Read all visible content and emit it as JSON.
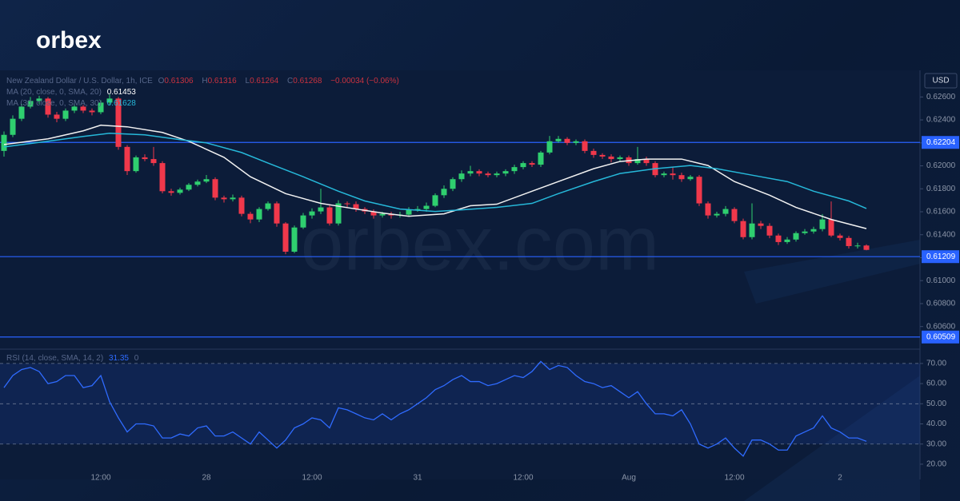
{
  "brand": "orbex",
  "watermark": "orbex.com",
  "chart_data": [
    {
      "type": "candlestick",
      "title": "New Zealand Dollar / U.S. Dollar, 1h, ICE",
      "ohlc_labels": [
        "O",
        "H",
        "L",
        "C"
      ],
      "change": "−0.00034 (−0.06%)",
      "currency": "USD",
      "up_color": "#2fcf6f",
      "down_color": "#f0384b",
      "level_color": "#2962ff",
      "categories": [
        null,
        null,
        null,
        null,
        null,
        null,
        null,
        null,
        null,
        null,
        null,
        "12:00",
        null,
        null,
        null,
        null,
        null,
        null,
        null,
        null,
        null,
        null,
        null,
        "28",
        null,
        null,
        null,
        null,
        null,
        null,
        null,
        null,
        null,
        null,
        null,
        "12:00",
        null,
        null,
        null,
        null,
        null,
        null,
        null,
        null,
        null,
        null,
        null,
        "31",
        null,
        null,
        null,
        null,
        null,
        null,
        null,
        null,
        null,
        null,
        null,
        "12:00",
        null,
        null,
        null,
        null,
        null,
        null,
        null,
        null,
        null,
        null,
        null,
        "Aug",
        null,
        null,
        null,
        null,
        null,
        null,
        null,
        null,
        null,
        null,
        null,
        "12:00",
        null,
        null,
        null,
        null,
        null,
        null,
        null,
        null,
        null,
        null,
        null,
        "2",
        null,
        null,
        null
      ],
      "open": [
        0.6213,
        0.6227,
        0.6241,
        0.62516,
        0.62565,
        0.62586,
        0.62446,
        0.6241,
        0.62481,
        0.62516,
        0.62481,
        0.62467,
        0.62551,
        0.62586,
        0.62165,
        0.61954,
        0.62074,
        0.62059,
        0.62024,
        0.61779,
        0.61765,
        0.61793,
        0.61835,
        0.61863,
        0.61884,
        0.61723,
        0.61709,
        0.61723,
        0.61582,
        0.61533,
        0.61624,
        0.61673,
        0.61498,
        0.61252,
        0.61463,
        0.61568,
        0.61603,
        0.61638,
        0.61498,
        0.61673,
        0.61666,
        0.61624,
        0.61603,
        0.61568,
        0.61582,
        0.61568,
        0.61575,
        0.61617,
        0.61624,
        0.61652,
        0.61744,
        0.618,
        0.61884,
        0.61933,
        0.61954,
        0.61933,
        0.61919,
        0.61933,
        0.61954,
        0.61989,
        0.62024,
        0.6201,
        0.62116,
        0.62214,
        0.62235,
        0.622,
        0.62214,
        0.6213,
        0.62095,
        0.62081,
        0.62059,
        0.62074,
        0.62024,
        0.62059,
        0.62024,
        0.61919,
        0.61933,
        0.61919,
        0.61884,
        0.61905,
        0.61673,
        0.61568,
        0.61582,
        0.61624,
        0.61519,
        0.61379,
        0.61498,
        0.61477,
        0.61393,
        0.61336,
        0.61358,
        0.61414,
        0.61428,
        0.61449,
        0.61533,
        0.61393,
        0.61372,
        0.61301,
        0.61306
      ],
      "high": [
        0.623,
        0.6244,
        0.6254,
        0.626,
        0.6261,
        0.626,
        0.6247,
        0.625,
        0.6254,
        0.6253,
        0.625,
        0.6257,
        0.62621,
        0.626,
        0.6218,
        0.6209,
        0.621,
        0.62165,
        0.6204,
        0.618,
        0.6181,
        0.6185,
        0.6188,
        0.6192,
        0.619,
        0.6174,
        0.6175,
        0.6174,
        0.616,
        0.6164,
        0.6169,
        0.6169,
        0.6151,
        0.6148,
        0.6159,
        0.6163,
        0.618,
        0.6166,
        0.617,
        0.6169,
        0.6169,
        0.6164,
        0.6162,
        0.616,
        0.616,
        0.616,
        0.6164,
        0.6165,
        0.6168,
        0.6176,
        0.6183,
        0.619,
        0.6196,
        0.62,
        0.6197,
        0.6195,
        0.6195,
        0.6197,
        0.6201,
        0.6204,
        0.6204,
        0.6213,
        0.6226,
        0.6226,
        0.6225,
        0.6223,
        0.6223,
        0.6215,
        0.6211,
        0.621,
        0.6209,
        0.6209,
        0.62165,
        0.6208,
        0.6204,
        0.6195,
        0.6199,
        0.6194,
        0.6192,
        0.6192,
        0.6169,
        0.616,
        0.6165,
        0.6164,
        0.6154,
        0.61673,
        0.6152,
        0.615,
        0.6141,
        0.6138,
        0.6143,
        0.6145,
        0.6147,
        0.6158,
        0.6169,
        0.6141,
        0.6139,
        0.6133,
        0.61316
      ],
      "low": [
        0.6208,
        0.6225,
        0.6239,
        0.625,
        0.6254,
        0.6242,
        0.6238,
        0.6239,
        0.6246,
        0.6246,
        0.6244,
        0.6245,
        0.6253,
        0.6214,
        0.6192,
        0.6194,
        0.6204,
        0.62,
        0.6176,
        0.6174,
        0.6175,
        0.6178,
        0.6182,
        0.6185,
        0.617,
        0.6168,
        0.6169,
        0.6156,
        0.615,
        0.6151,
        0.6161,
        0.6147,
        0.6123,
        0.6124,
        0.6145,
        0.6154,
        0.6158,
        0.6148,
        0.6148,
        0.6164,
        0.616,
        0.6158,
        0.6154,
        0.6155,
        0.6154,
        0.6155,
        0.6156,
        0.616,
        0.616,
        0.6164,
        0.6172,
        0.6178,
        0.6186,
        0.6191,
        0.6191,
        0.619,
        0.619,
        0.6191,
        0.6193,
        0.6197,
        0.6199,
        0.6199,
        0.621,
        0.622,
        0.6218,
        0.6218,
        0.6211,
        0.6207,
        0.6206,
        0.6203,
        0.6204,
        0.62,
        0.6201,
        0.62,
        0.619,
        0.619,
        0.6188,
        0.6186,
        0.6187,
        0.6165,
        0.6154,
        0.6155,
        0.6156,
        0.615,
        0.6136,
        0.6136,
        0.6145,
        0.6137,
        0.6131,
        0.6132,
        0.6134,
        0.614,
        0.6141,
        0.6143,
        0.6138,
        0.6135,
        0.6128,
        0.6128,
        0.61264
      ],
      "close": [
        0.6227,
        0.6241,
        0.62516,
        0.62565,
        0.62586,
        0.62446,
        0.6241,
        0.62481,
        0.62516,
        0.62481,
        0.62467,
        0.62551,
        0.62586,
        0.62165,
        0.61954,
        0.62074,
        0.62059,
        0.62024,
        0.61779,
        0.61765,
        0.61793,
        0.61835,
        0.61863,
        0.61884,
        0.61723,
        0.61709,
        0.61723,
        0.61582,
        0.61533,
        0.61624,
        0.61673,
        0.61498,
        0.61252,
        0.61463,
        0.61568,
        0.61603,
        0.61638,
        0.61498,
        0.61673,
        0.61666,
        0.61624,
        0.61603,
        0.61568,
        0.61582,
        0.61568,
        0.61575,
        0.61617,
        0.61624,
        0.61652,
        0.61744,
        0.618,
        0.61884,
        0.61933,
        0.61954,
        0.61933,
        0.61919,
        0.61933,
        0.61954,
        0.61989,
        0.62024,
        0.6201,
        0.62116,
        0.62214,
        0.62235,
        0.622,
        0.62214,
        0.6213,
        0.62095,
        0.62081,
        0.62059,
        0.62074,
        0.62024,
        0.62059,
        0.62024,
        0.61919,
        0.61933,
        0.61919,
        0.61884,
        0.61905,
        0.61673,
        0.61568,
        0.61582,
        0.61624,
        0.61519,
        0.61379,
        0.61498,
        0.61477,
        0.61393,
        0.61336,
        0.61358,
        0.61414,
        0.61428,
        0.61449,
        0.61533,
        0.61393,
        0.61372,
        0.61301,
        0.61306,
        0.61268
      ],
      "series": [
        {
          "name": "MA (20, close, 0, SMA, 20)",
          "color": "#f2f2f2",
          "x": [
            0,
            5,
            9,
            11,
            14,
            18,
            21,
            25,
            28,
            32,
            36,
            40,
            43,
            46,
            50,
            53,
            56,
            60,
            63,
            67,
            70,
            73,
            77,
            80,
            83,
            87,
            90,
            94,
            98
          ],
          "values": [
            0.62186,
            0.62235,
            0.62305,
            0.62354,
            0.6234,
            0.62291,
            0.62214,
            0.62074,
            0.61905,
            0.61758,
            0.61673,
            0.61624,
            0.61589,
            0.61561,
            0.61582,
            0.61652,
            0.61666,
            0.61779,
            0.61863,
            0.61975,
            0.62038,
            0.62059,
            0.62059,
            0.62003,
            0.61863,
            0.61744,
            0.61638,
            0.61533,
            0.61453
          ]
        },
        {
          "name": "MA (30, close, 0, SMA, 30)",
          "color": "#26b8d9",
          "x": [
            0,
            5,
            9,
            12,
            16,
            20,
            23,
            27,
            30,
            34,
            38,
            41,
            45,
            49,
            52,
            56,
            60,
            63,
            67,
            70,
            74,
            78,
            81,
            85,
            89,
            92,
            96,
            98
          ],
          "values": [
            0.62165,
            0.62214,
            0.62256,
            0.62284,
            0.6227,
            0.62228,
            0.622,
            0.62116,
            0.62024,
            0.61905,
            0.61779,
            0.61694,
            0.61624,
            0.61603,
            0.61617,
            0.61638,
            0.61673,
            0.61758,
            0.61863,
            0.61933,
            0.61975,
            0.62003,
            0.61975,
            0.61919,
            0.61863,
            0.61779,
            0.61694,
            0.61628
          ]
        }
      ],
      "levels": [
        0.62204,
        0.61209,
        0.60509
      ],
      "ylim": [
        0.6041,
        0.62832
      ],
      "yticks": [
        {
          "value": 0.626,
          "label": "0.62600"
        },
        {
          "value": 0.624,
          "label": "0.62400"
        },
        {
          "value": 0.622,
          "label": "0.62200"
        },
        {
          "value": 0.62,
          "label": "0.62000"
        },
        {
          "value": 0.618,
          "label": "0.61800"
        },
        {
          "value": 0.616,
          "label": "0.61600"
        },
        {
          "value": 0.614,
          "label": "0.61400"
        },
        {
          "value": 0.612,
          "label": "0.61200"
        },
        {
          "value": 0.61,
          "label": "0.61000"
        },
        {
          "value": 0.608,
          "label": "0.60800"
        },
        {
          "value": 0.606,
          "label": "0.60600"
        }
      ]
    },
    {
      "type": "line",
      "title": "RSI (14, close, SMA, 14, 2)",
      "legend_extra": 0,
      "color": "#2f6bff",
      "values": [
        58,
        64,
        67,
        68,
        66,
        60,
        61,
        64,
        64,
        58,
        59,
        64,
        51,
        43,
        36,
        40,
        40,
        39,
        33,
        33,
        35,
        34,
        38,
        39,
        34,
        34,
        36,
        33,
        30,
        36,
        32,
        28,
        32,
        38,
        40,
        43,
        42,
        38,
        48,
        47,
        45,
        43,
        42,
        45,
        42,
        45,
        47,
        50,
        53,
        57,
        59,
        62,
        64,
        61,
        61,
        59,
        60,
        62,
        64,
        63,
        66,
        71,
        67,
        69,
        68,
        64,
        61,
        60,
        58,
        59,
        56,
        53,
        56,
        50,
        45,
        45,
        44,
        47,
        40,
        30,
        28,
        30,
        33,
        28,
        24,
        32,
        32,
        30,
        27,
        27,
        34,
        36,
        38,
        44,
        38,
        36,
        33,
        33,
        31.35
      ],
      "band": [
        30,
        70
      ],
      "levels": [
        70,
        50,
        30
      ],
      "band_color": "#2962ff",
      "ylim": [
        16.4,
        75.9
      ],
      "yticks": [
        {
          "value": 70,
          "label": "70.00"
        },
        {
          "value": 60,
          "label": "60.00"
        },
        {
          "value": 50,
          "label": "50.00"
        },
        {
          "value": 40,
          "label": "40.00"
        },
        {
          "value": 30,
          "label": "30.00"
        },
        {
          "value": 20,
          "label": "20.00"
        }
      ]
    }
  ]
}
